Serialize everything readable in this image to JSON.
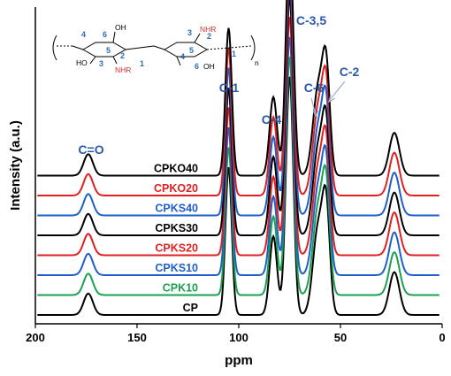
{
  "chart_data": {
    "type": "line",
    "xlabel": "ppm",
    "ylabel": "Intensity (a.u.)",
    "xlim": [
      200,
      0
    ],
    "xticks": [
      200,
      150,
      100,
      50,
      0
    ],
    "series": [
      {
        "name": "CPKO40",
        "color": "#000000"
      },
      {
        "name": "CPKO20",
        "color": "#e02020"
      },
      {
        "name": "CPKS40",
        "color": "#1f5fc8"
      },
      {
        "name": "CPKS30",
        "color": "#000000"
      },
      {
        "name": "CPKS20",
        "color": "#e02020"
      },
      {
        "name": "CPKS10",
        "color": "#1f5fc8"
      },
      {
        "name": "CPK10",
        "color": "#1aa050"
      },
      {
        "name": "CP",
        "color": "#000000"
      }
    ],
    "peaks": [
      {
        "label": "C=O",
        "ppm": 174,
        "height": 0.09
      },
      {
        "label": "C-1",
        "ppm": 105,
        "height": 0.62
      },
      {
        "label": "C-4",
        "ppm": 83,
        "height": 0.33
      },
      {
        "label": "C-3,5",
        "ppm": 75,
        "height": 1.0
      },
      {
        "label": "C-6",
        "ppm": 61,
        "height": 0.36
      },
      {
        "label": "C-2",
        "ppm": 57,
        "height": 0.42
      },
      {
        "label": "",
        "ppm": 23.5,
        "height": 0.18
      }
    ],
    "annotations": {
      "c_o": "C=O",
      "c1": "C-1",
      "c4": "C-4",
      "c35": "C-3,5",
      "c6": "C-6",
      "c2": "C-2"
    },
    "grid": false
  },
  "structure": {
    "nums": [
      "4",
      "6",
      "5",
      "2",
      "3",
      "1",
      "3",
      "2",
      "4",
      "5",
      "6",
      "1"
    ],
    "oh": "OH",
    "ho": "HO",
    "nhr": "NHR",
    "n": "n"
  }
}
